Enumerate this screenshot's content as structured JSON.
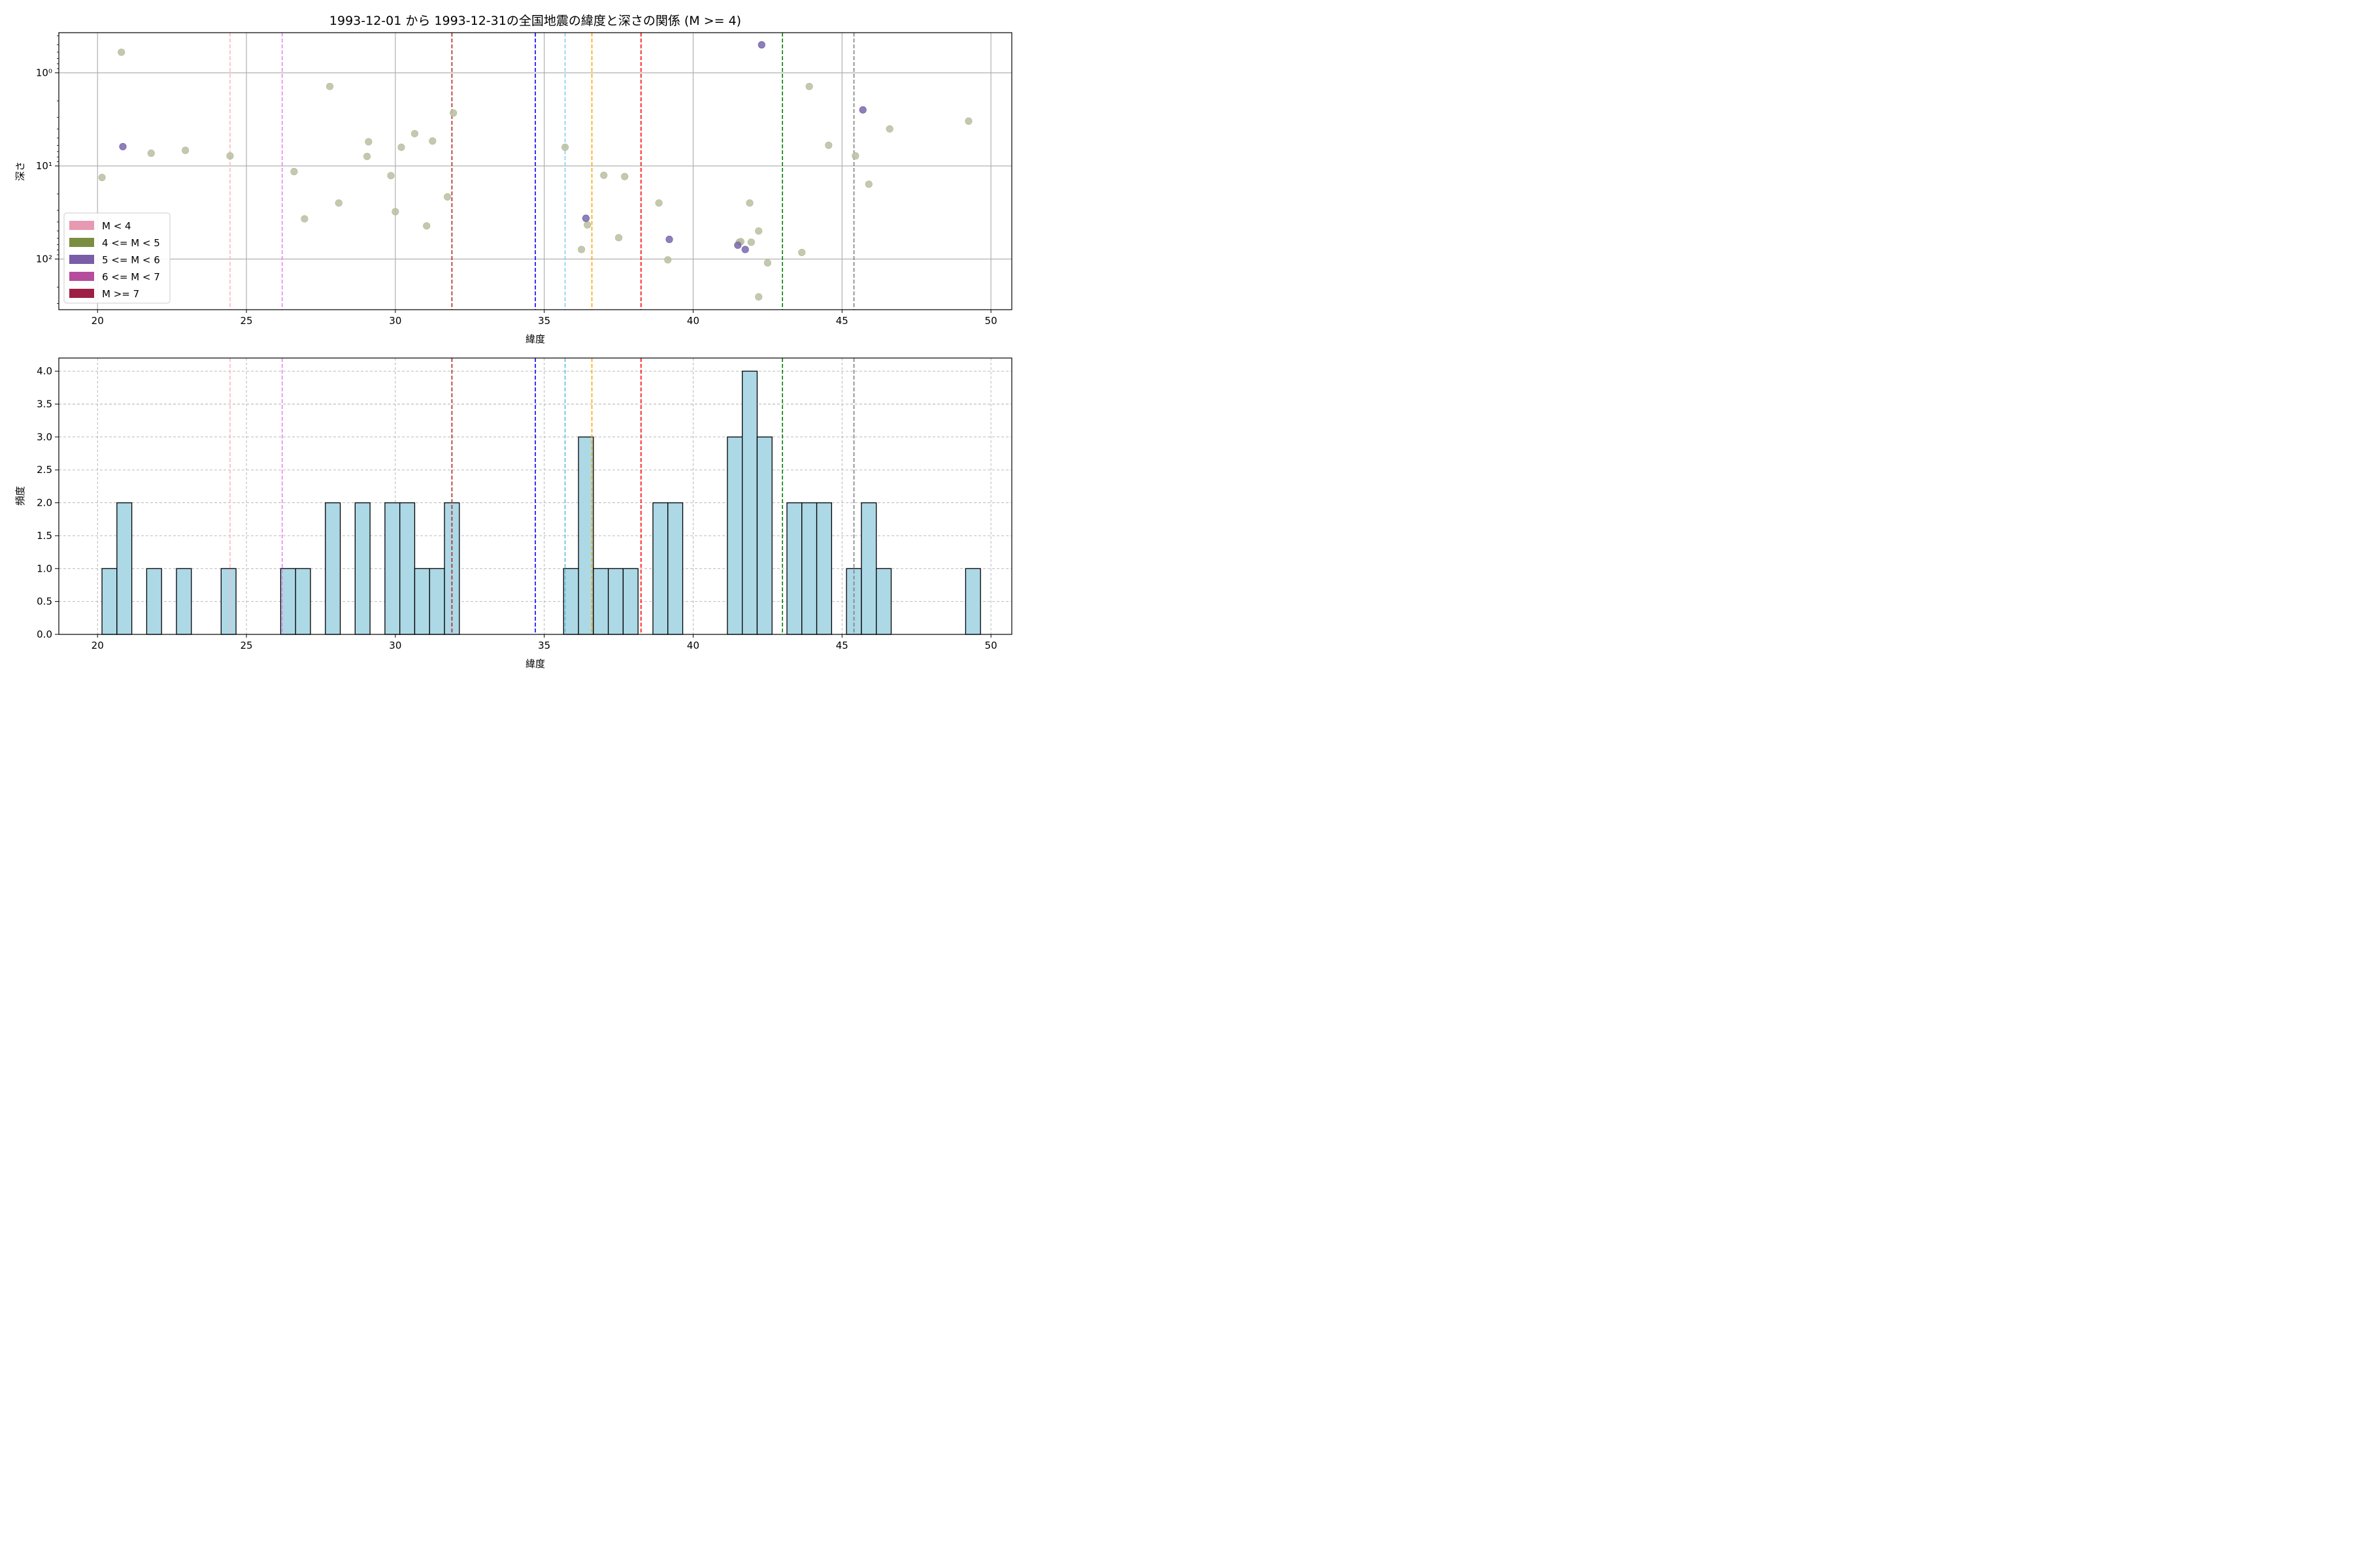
{
  "figure": {
    "title": "1993-12-01 から 1993-12-31の全国地震の緯度と深さの関係 (M >= 4)"
  },
  "chart_data": [
    {
      "type": "scatter",
      "title": "1993-12-01 から 1993-12-31の全国地震の緯度と深さの関係 (M >= 4)",
      "xlabel": "緯度",
      "ylabel": "深さ",
      "xlim": [
        18.7,
        50.7
      ],
      "ylim": [
        350,
        0.37
      ],
      "yscale": "log",
      "y_inverted": true,
      "xticks": [
        20,
        25,
        30,
        35,
        40,
        45,
        50
      ],
      "yticks": [
        1,
        10,
        100
      ],
      "ytick_labels": [
        "10⁰",
        "10¹",
        "10²"
      ],
      "grid": true,
      "legend": {
        "position": "lower-left",
        "entries": [
          {
            "label": "M < 4",
            "color": "#e899b2"
          },
          {
            "label": "4 <= M < 5",
            "color": "#7b8d42"
          },
          {
            "label": "5 <= M < 6",
            "color": "#7a5ca8"
          },
          {
            "label": "6 <= M < 7",
            "color": "#b54d9c"
          },
          {
            "label": "M >= 7",
            "color": "#9e1f44"
          }
        ]
      },
      "vlines": [
        {
          "x": 24.45,
          "color": "#ffb6c1"
        },
        {
          "x": 26.2,
          "color": "#ee82ee"
        },
        {
          "x": 31.9,
          "color": "#b22222"
        },
        {
          "x": 34.7,
          "color": "#0000ff"
        },
        {
          "x": 35.7,
          "color": "#87ceeb"
        },
        {
          "x": 36.6,
          "color": "#ffa500"
        },
        {
          "x": 38.25,
          "color": "#ff0000"
        },
        {
          "x": 43.0,
          "color": "#008000"
        },
        {
          "x": 45.4,
          "color": "#808080"
        }
      ],
      "series": [
        {
          "name": "4 <= M < 5",
          "color": "#b8c0a0",
          "points": [
            [
              20.8,
              0.6
            ],
            [
              20.15,
              13.3
            ],
            [
              21.8,
              7.3
            ],
            [
              22.95,
              6.8
            ],
            [
              24.45,
              7.8
            ],
            [
              26.6,
              11.5
            ],
            [
              26.95,
              37
            ],
            [
              27.8,
              1.4
            ],
            [
              28.1,
              25
            ],
            [
              29.05,
              7.9
            ],
            [
              29.1,
              5.5
            ],
            [
              29.85,
              12.7
            ],
            [
              30.0,
              31
            ],
            [
              30.2,
              6.3
            ],
            [
              30.65,
              4.5
            ],
            [
              31.05,
              44
            ],
            [
              31.25,
              5.4
            ],
            [
              31.75,
              21.5
            ],
            [
              31.95,
              2.7
            ],
            [
              35.7,
              6.3
            ],
            [
              36.25,
              79
            ],
            [
              36.45,
              43
            ],
            [
              37.0,
              12.6
            ],
            [
              37.5,
              59
            ],
            [
              37.7,
              13
            ],
            [
              38.85,
              25
            ],
            [
              39.15,
              102
            ],
            [
              41.55,
              66
            ],
            [
              41.6,
              65
            ],
            [
              41.9,
              25
            ],
            [
              41.95,
              66
            ],
            [
              42.2,
              50
            ],
            [
              42.2,
              255
            ],
            [
              42.5,
              110
            ],
            [
              43.65,
              85
            ],
            [
              43.9,
              1.4
            ],
            [
              44.55,
              6
            ],
            [
              45.45,
              7.8
            ],
            [
              45.9,
              15.7
            ],
            [
              46.6,
              4
            ],
            [
              49.25,
              3.3
            ]
          ]
        },
        {
          "name": "5 <= M < 6",
          "color": "#7a67ad",
          "points": [
            [
              20.85,
              6.2
            ],
            [
              42.3,
              0.5
            ],
            [
              45.7,
              2.5
            ],
            [
              36.4,
              36.5
            ],
            [
              39.2,
              61.5
            ],
            [
              41.5,
              71
            ],
            [
              41.75,
              79
            ]
          ]
        }
      ]
    },
    {
      "type": "bar",
      "title": "",
      "xlabel": "緯度",
      "ylabel": "頻度",
      "xlim": [
        18.7,
        50.7
      ],
      "ylim": [
        0,
        4.2
      ],
      "xticks": [
        20,
        25,
        30,
        35,
        40,
        45,
        50
      ],
      "yticks": [
        0.0,
        0.5,
        1.0,
        1.5,
        2.0,
        2.5,
        3.0,
        3.5,
        4.0
      ],
      "ytick_labels": [
        "0.0",
        "0.5",
        "1.0",
        "1.5",
        "2.0",
        "2.5",
        "3.0",
        "3.5",
        "4.0"
      ],
      "grid": true,
      "bar_color": "#add8e6",
      "bins": [
        {
          "left": 20.15,
          "right": 20.65,
          "count": 1
        },
        {
          "left": 20.65,
          "right": 21.15,
          "count": 2
        },
        {
          "left": 21.65,
          "right": 22.15,
          "count": 1
        },
        {
          "left": 22.65,
          "right": 23.15,
          "count": 1
        },
        {
          "left": 24.15,
          "right": 24.65,
          "count": 1
        },
        {
          "left": 26.15,
          "right": 26.65,
          "count": 1
        },
        {
          "left": 26.65,
          "right": 27.15,
          "count": 1
        },
        {
          "left": 27.65,
          "right": 28.15,
          "count": 2
        },
        {
          "left": 28.65,
          "right": 29.15,
          "count": 2
        },
        {
          "left": 29.65,
          "right": 30.15,
          "count": 2
        },
        {
          "left": 30.15,
          "right": 30.65,
          "count": 2
        },
        {
          "left": 30.65,
          "right": 31.15,
          "count": 1
        },
        {
          "left": 31.15,
          "right": 31.65,
          "count": 1
        },
        {
          "left": 31.65,
          "right": 32.15,
          "count": 2
        },
        {
          "left": 35.65,
          "right": 36.15,
          "count": 1
        },
        {
          "left": 36.15,
          "right": 36.65,
          "count": 3
        },
        {
          "left": 36.65,
          "right": 37.15,
          "count": 1
        },
        {
          "left": 37.15,
          "right": 37.65,
          "count": 1
        },
        {
          "left": 37.65,
          "right": 38.15,
          "count": 1
        },
        {
          "left": 38.65,
          "right": 39.15,
          "count": 2
        },
        {
          "left": 39.15,
          "right": 39.65,
          "count": 2
        },
        {
          "left": 41.15,
          "right": 41.65,
          "count": 3
        },
        {
          "left": 41.65,
          "right": 42.15,
          "count": 4
        },
        {
          "left": 42.15,
          "right": 42.65,
          "count": 3
        },
        {
          "left": 43.15,
          "right": 43.65,
          "count": 2
        },
        {
          "left": 43.65,
          "right": 44.15,
          "count": 2
        },
        {
          "left": 44.15,
          "right": 44.65,
          "count": 2
        },
        {
          "left": 45.15,
          "right": 45.65,
          "count": 1
        },
        {
          "left": 45.65,
          "right": 46.15,
          "count": 2
        },
        {
          "left": 46.15,
          "right": 46.65,
          "count": 1
        },
        {
          "left": 49.15,
          "right": 49.65,
          "count": 1
        }
      ],
      "vlines": [
        {
          "x": 24.45,
          "color": "#ffb6c1"
        },
        {
          "x": 26.2,
          "color": "#ee82ee"
        },
        {
          "x": 31.9,
          "color": "#b22222"
        },
        {
          "x": 34.7,
          "color": "#0000ff"
        },
        {
          "x": 35.7,
          "color": "#5bc0d6"
        },
        {
          "x": 36.6,
          "color": "#ffa500"
        },
        {
          "x": 38.25,
          "color": "#ff0000"
        },
        {
          "x": 43.0,
          "color": "#008000"
        },
        {
          "x": 45.4,
          "color": "#808080"
        }
      ]
    }
  ]
}
